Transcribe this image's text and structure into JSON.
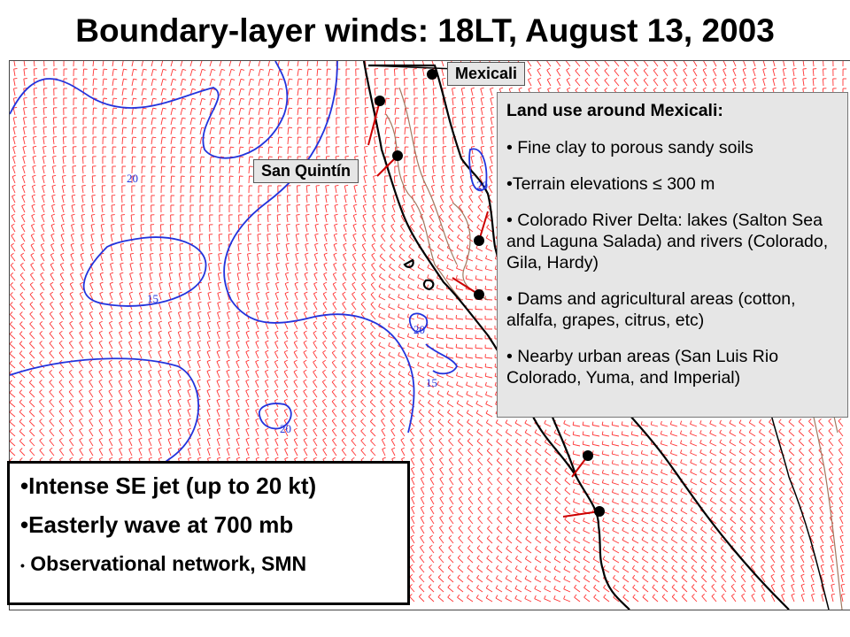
{
  "title": "Boundary-layer winds: 18LT, August 13, 2003",
  "map_labels": {
    "mexicali": "Mexicali",
    "san_quintin": "San Quintín"
  },
  "contour_labels": [
    "20",
    "15",
    "20",
    "15",
    "20",
    "20"
  ],
  "land_use": {
    "heading": "Land use around Mexicali:",
    "items": [
      "• Fine clay to porous sandy soils",
      "•Terrain elevations  ≤ 300 m",
      "• Colorado River Delta: lakes (Salton Sea and Laguna Salada) and rivers (Colorado, Gila, Hardy)",
      "• Dams and agricultural areas (cotton, alfalfa, grapes, citrus, etc)",
      "• Nearby urban areas (San Luis Rio Colorado, Yuma, and Imperial)"
    ]
  },
  "notes": {
    "items": [
      "•Intense SE jet (up to 20 kt)",
      "•Easterly wave at 700 mb"
    ],
    "last_bullet": "•",
    "last_text": " Observational network, SMN"
  },
  "colors": {
    "wind_barbs": "#ff3333",
    "isotachs": "#2233dd",
    "coastline": "#000000",
    "terrain_contours": "#a07860",
    "label_box": "#e6e6e6"
  },
  "icons": [
    "station-dot-icon"
  ]
}
